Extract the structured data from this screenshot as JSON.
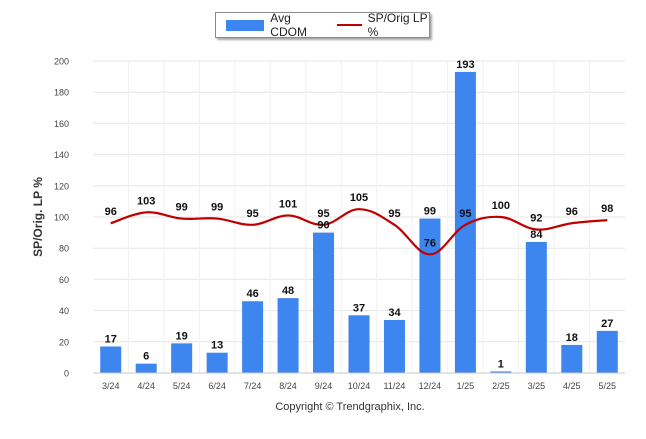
{
  "chart_data": {
    "type": "bar",
    "categories": [
      "3/24",
      "4/24",
      "5/24",
      "6/24",
      "7/24",
      "8/24",
      "9/24",
      "10/24",
      "11/24",
      "12/24",
      "1/25",
      "2/25",
      "3/25",
      "4/25",
      "5/25"
    ],
    "series": [
      {
        "name": "Avg CDOM",
        "type": "bar",
        "values": [
          17,
          6,
          19,
          13,
          46,
          48,
          90,
          37,
          34,
          99,
          193,
          1,
          84,
          18,
          27
        ]
      },
      {
        "name": "SP/Orig LP %",
        "type": "line",
        "values": [
          96,
          103,
          99,
          99,
          95,
          101,
          95,
          105,
          95,
          76,
          95,
          100,
          92,
          96,
          98
        ]
      }
    ],
    "ylabel": "SP/Orig. LP %",
    "xlabel": "",
    "ylim": [
      0,
      200
    ],
    "yticks": [
      0,
      20,
      40,
      60,
      80,
      100,
      120,
      140,
      160,
      180,
      200
    ],
    "grid": true,
    "legend_position": "top-center",
    "colors": {
      "bar": "#3d85ef",
      "line": "#c00000",
      "grid": "#e6e6e6"
    }
  },
  "legend": {
    "bar_label": "Avg CDOM",
    "line_label": "SP/Orig LP %"
  },
  "footer": {
    "copyright": "Copyright © Trendgraphix, Inc."
  }
}
